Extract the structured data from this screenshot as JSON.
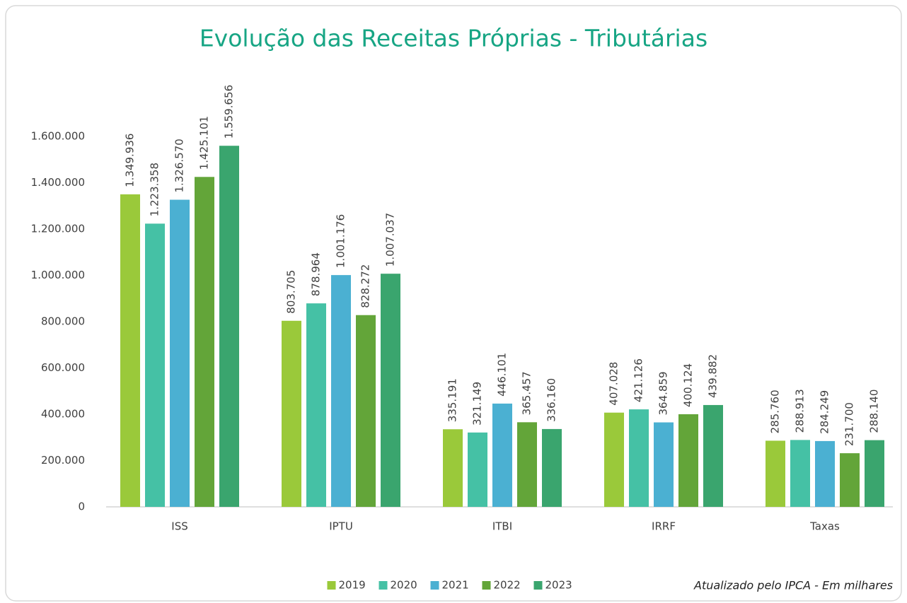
{
  "chart_data": {
    "type": "bar",
    "title": "Evolução das Receitas Próprias - Tributárias",
    "note": "Atualizado pelo IPCA - Em milhares",
    "categories": [
      "ISS",
      "IPTU",
      "ITBI",
      "IRRF",
      "Taxas"
    ],
    "series": [
      {
        "name": "2019",
        "color": "#9ac93a",
        "values": [
          1349936,
          803705,
          335191,
          407028,
          285760
        ],
        "value_labels": [
          "1.349.936",
          "803.705",
          "335.191",
          "407.028",
          "285.760"
        ]
      },
      {
        "name": "2020",
        "color": "#45c1a5",
        "values": [
          1223358,
          878964,
          321149,
          421126,
          288913
        ],
        "value_labels": [
          "1.223.358",
          "878.964",
          "321.149",
          "421.126",
          "288.913"
        ]
      },
      {
        "name": "2021",
        "color": "#4bb0d2",
        "values": [
          1326570,
          1001176,
          446101,
          364859,
          284249
        ],
        "value_labels": [
          "1.326.570",
          "1.001.176",
          "446.101",
          "364.859",
          "284.249"
        ]
      },
      {
        "name": "2022",
        "color": "#63a539",
        "values": [
          1425101,
          828272,
          365457,
          400124,
          231700
        ],
        "value_labels": [
          "1.425.101",
          "828.272",
          "365.457",
          "400.124",
          "231.700"
        ]
      },
      {
        "name": "2023",
        "color": "#3aa56e",
        "values": [
          1559656,
          1007037,
          336160,
          439882,
          288140
        ],
        "value_labels": [
          "1.559.656",
          "1.007.037",
          "336.160",
          "439.882",
          "288.140"
        ]
      }
    ],
    "ylim": [
      0,
      1600000
    ],
    "yticks": [
      0,
      {
        "value": 200000,
        "label": "200.000"
      },
      {
        "value": 400000,
        "label": "400.000"
      },
      {
        "value": 600000,
        "label": "600.000"
      },
      {
        "value": 800000,
        "label": "800.000"
      },
      {
        "value": 1000000,
        "label": "1.000.000"
      },
      {
        "value": 1200000,
        "label": "1.200.000"
      },
      {
        "value": 1400000,
        "label": "1.400.000"
      },
      {
        "value": 1600000,
        "label": "1.600.000"
      }
    ],
    "grid": false,
    "legend": "bottom"
  }
}
